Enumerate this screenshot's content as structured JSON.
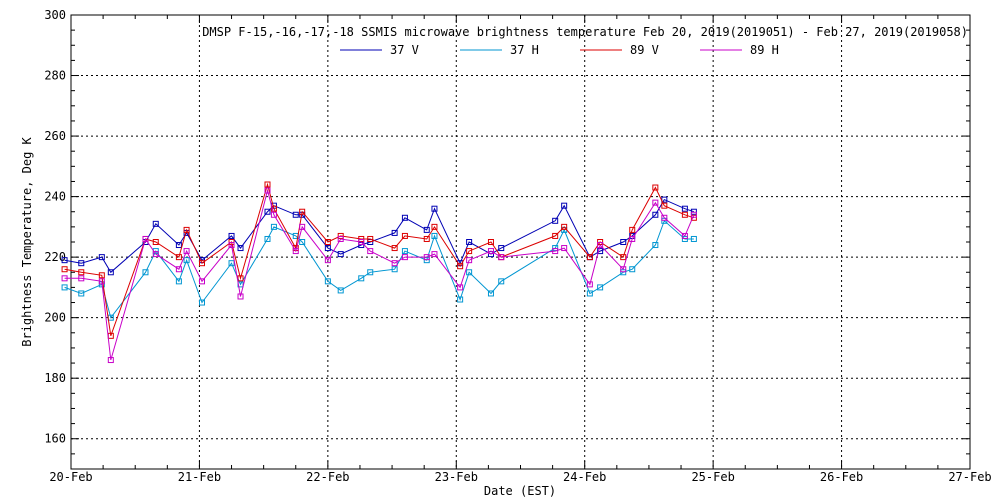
{
  "chart_data": {
    "type": "line",
    "title": "DMSP F-15,-16,-17,-18 SSMIS microwave brightness temperature Feb 20, 2019(2019051) - Feb 27, 2019(2019058)",
    "xlabel": "Date (EST)",
    "ylabel": "Brightness Temperature, Deg K",
    "xlim": [
      0,
      7
    ],
    "ylim": [
      150,
      300
    ],
    "x_ticks": [
      {
        "value": 0,
        "label": "20-Feb"
      },
      {
        "value": 1,
        "label": "21-Feb"
      },
      {
        "value": 2,
        "label": "22-Feb"
      },
      {
        "value": 3,
        "label": "23-Feb"
      },
      {
        "value": 4,
        "label": "24-Feb"
      },
      {
        "value": 5,
        "label": "25-Feb"
      },
      {
        "value": 6,
        "label": "26-Feb"
      },
      {
        "value": 7,
        "label": "27-Feb"
      }
    ],
    "y_ticks": [
      160,
      180,
      200,
      220,
      240,
      260,
      280,
      300
    ],
    "grid": true,
    "legend_position": "top-center",
    "series": [
      {
        "name": "37 V",
        "color": "#0000b4",
        "points": [
          [
            -0.05,
            219
          ],
          [
            0.08,
            218
          ],
          [
            0.24,
            220
          ],
          [
            0.31,
            215
          ],
          [
            0.58,
            225
          ],
          [
            0.66,
            231
          ],
          [
            0.84,
            224
          ],
          [
            0.9,
            228
          ],
          [
            1.02,
            219
          ],
          [
            1.25,
            227
          ],
          [
            1.32,
            223
          ],
          [
            1.53,
            235
          ],
          [
            1.58,
            237
          ],
          [
            1.75,
            234
          ],
          [
            1.8,
            234
          ],
          [
            2.0,
            223
          ],
          [
            2.1,
            221
          ],
          [
            2.26,
            224
          ],
          [
            2.33,
            225
          ],
          [
            2.52,
            228
          ],
          [
            2.6,
            233
          ],
          [
            2.77,
            229
          ],
          [
            2.83,
            236
          ],
          [
            3.03,
            218
          ],
          [
            3.1,
            225
          ],
          [
            3.27,
            221
          ],
          [
            3.35,
            223
          ],
          [
            3.77,
            232
          ],
          [
            3.84,
            237
          ],
          [
            4.04,
            220
          ],
          [
            4.12,
            222
          ],
          [
            4.3,
            225
          ],
          [
            4.37,
            227
          ],
          [
            4.55,
            234
          ],
          [
            4.62,
            239
          ],
          [
            4.78,
            236
          ],
          [
            4.85,
            235
          ]
        ]
      },
      {
        "name": "37 H",
        "color": "#0096d2",
        "points": [
          [
            -0.05,
            210
          ],
          [
            0.08,
            208
          ],
          [
            0.24,
            211
          ],
          [
            0.31,
            200
          ],
          [
            0.58,
            215
          ],
          [
            0.66,
            222
          ],
          [
            0.84,
            212
          ],
          [
            0.9,
            219
          ],
          [
            1.02,
            205
          ],
          [
            1.25,
            218
          ],
          [
            1.32,
            211
          ],
          [
            1.53,
            226
          ],
          [
            1.58,
            230
          ],
          [
            1.75,
            227
          ],
          [
            1.8,
            225
          ],
          [
            2.0,
            212
          ],
          [
            2.1,
            209
          ],
          [
            2.26,
            213
          ],
          [
            2.33,
            215
          ],
          [
            2.52,
            216
          ],
          [
            2.6,
            222
          ],
          [
            2.77,
            219
          ],
          [
            2.83,
            227
          ],
          [
            3.03,
            206
          ],
          [
            3.1,
            215
          ],
          [
            3.27,
            208
          ],
          [
            3.35,
            212
          ],
          [
            3.77,
            223
          ],
          [
            3.84,
            229
          ],
          [
            4.04,
            208
          ],
          [
            4.12,
            210
          ],
          [
            4.3,
            215
          ],
          [
            4.37,
            216
          ],
          [
            4.55,
            224
          ],
          [
            4.62,
            232
          ],
          [
            4.78,
            226
          ],
          [
            4.85,
            226
          ]
        ]
      },
      {
        "name": "89 V",
        "color": "#dc0000",
        "points": [
          [
            -0.05,
            216
          ],
          [
            0.08,
            215
          ],
          [
            0.24,
            214
          ],
          [
            0.31,
            194
          ],
          [
            0.58,
            226
          ],
          [
            0.66,
            225
          ],
          [
            0.84,
            220
          ],
          [
            0.9,
            229
          ],
          [
            1.02,
            218
          ],
          [
            1.25,
            225
          ],
          [
            1.32,
            213
          ],
          [
            1.53,
            244
          ],
          [
            1.58,
            236
          ],
          [
            1.75,
            223
          ],
          [
            1.8,
            235
          ],
          [
            2.0,
            225
          ],
          [
            2.1,
            227
          ],
          [
            2.26,
            226
          ],
          [
            2.33,
            226
          ],
          [
            2.52,
            223
          ],
          [
            2.6,
            227
          ],
          [
            2.77,
            226
          ],
          [
            2.83,
            230
          ],
          [
            3.03,
            217
          ],
          [
            3.1,
            222
          ],
          [
            3.27,
            225
          ],
          [
            3.35,
            220
          ],
          [
            3.77,
            227
          ],
          [
            3.84,
            230
          ],
          [
            4.04,
            220
          ],
          [
            4.12,
            225
          ],
          [
            4.3,
            220
          ],
          [
            4.37,
            229
          ],
          [
            4.55,
            243
          ],
          [
            4.62,
            237
          ],
          [
            4.78,
            234
          ],
          [
            4.85,
            233
          ]
        ]
      },
      {
        "name": "89 H",
        "color": "#c800c8",
        "points": [
          [
            -0.05,
            213
          ],
          [
            0.08,
            213
          ],
          [
            0.24,
            212
          ],
          [
            0.31,
            186
          ],
          [
            0.58,
            226
          ],
          [
            0.66,
            221
          ],
          [
            0.84,
            216
          ],
          [
            0.9,
            222
          ],
          [
            1.02,
            212
          ],
          [
            1.25,
            224
          ],
          [
            1.32,
            207
          ],
          [
            1.53,
            242
          ],
          [
            1.58,
            234
          ],
          [
            1.75,
            222
          ],
          [
            1.8,
            230
          ],
          [
            2.0,
            219
          ],
          [
            2.1,
            226
          ],
          [
            2.26,
            225
          ],
          [
            2.33,
            222
          ],
          [
            2.52,
            218
          ],
          [
            2.6,
            220
          ],
          [
            2.77,
            220
          ],
          [
            2.83,
            221
          ],
          [
            3.03,
            210
          ],
          [
            3.1,
            219
          ],
          [
            3.27,
            222
          ],
          [
            3.35,
            220
          ],
          [
            3.77,
            222
          ],
          [
            3.84,
            223
          ],
          [
            4.04,
            211
          ],
          [
            4.12,
            224
          ],
          [
            4.3,
            216
          ],
          [
            4.37,
            226
          ],
          [
            4.55,
            238
          ],
          [
            4.62,
            233
          ],
          [
            4.78,
            227
          ],
          [
            4.85,
            234
          ]
        ]
      }
    ]
  }
}
